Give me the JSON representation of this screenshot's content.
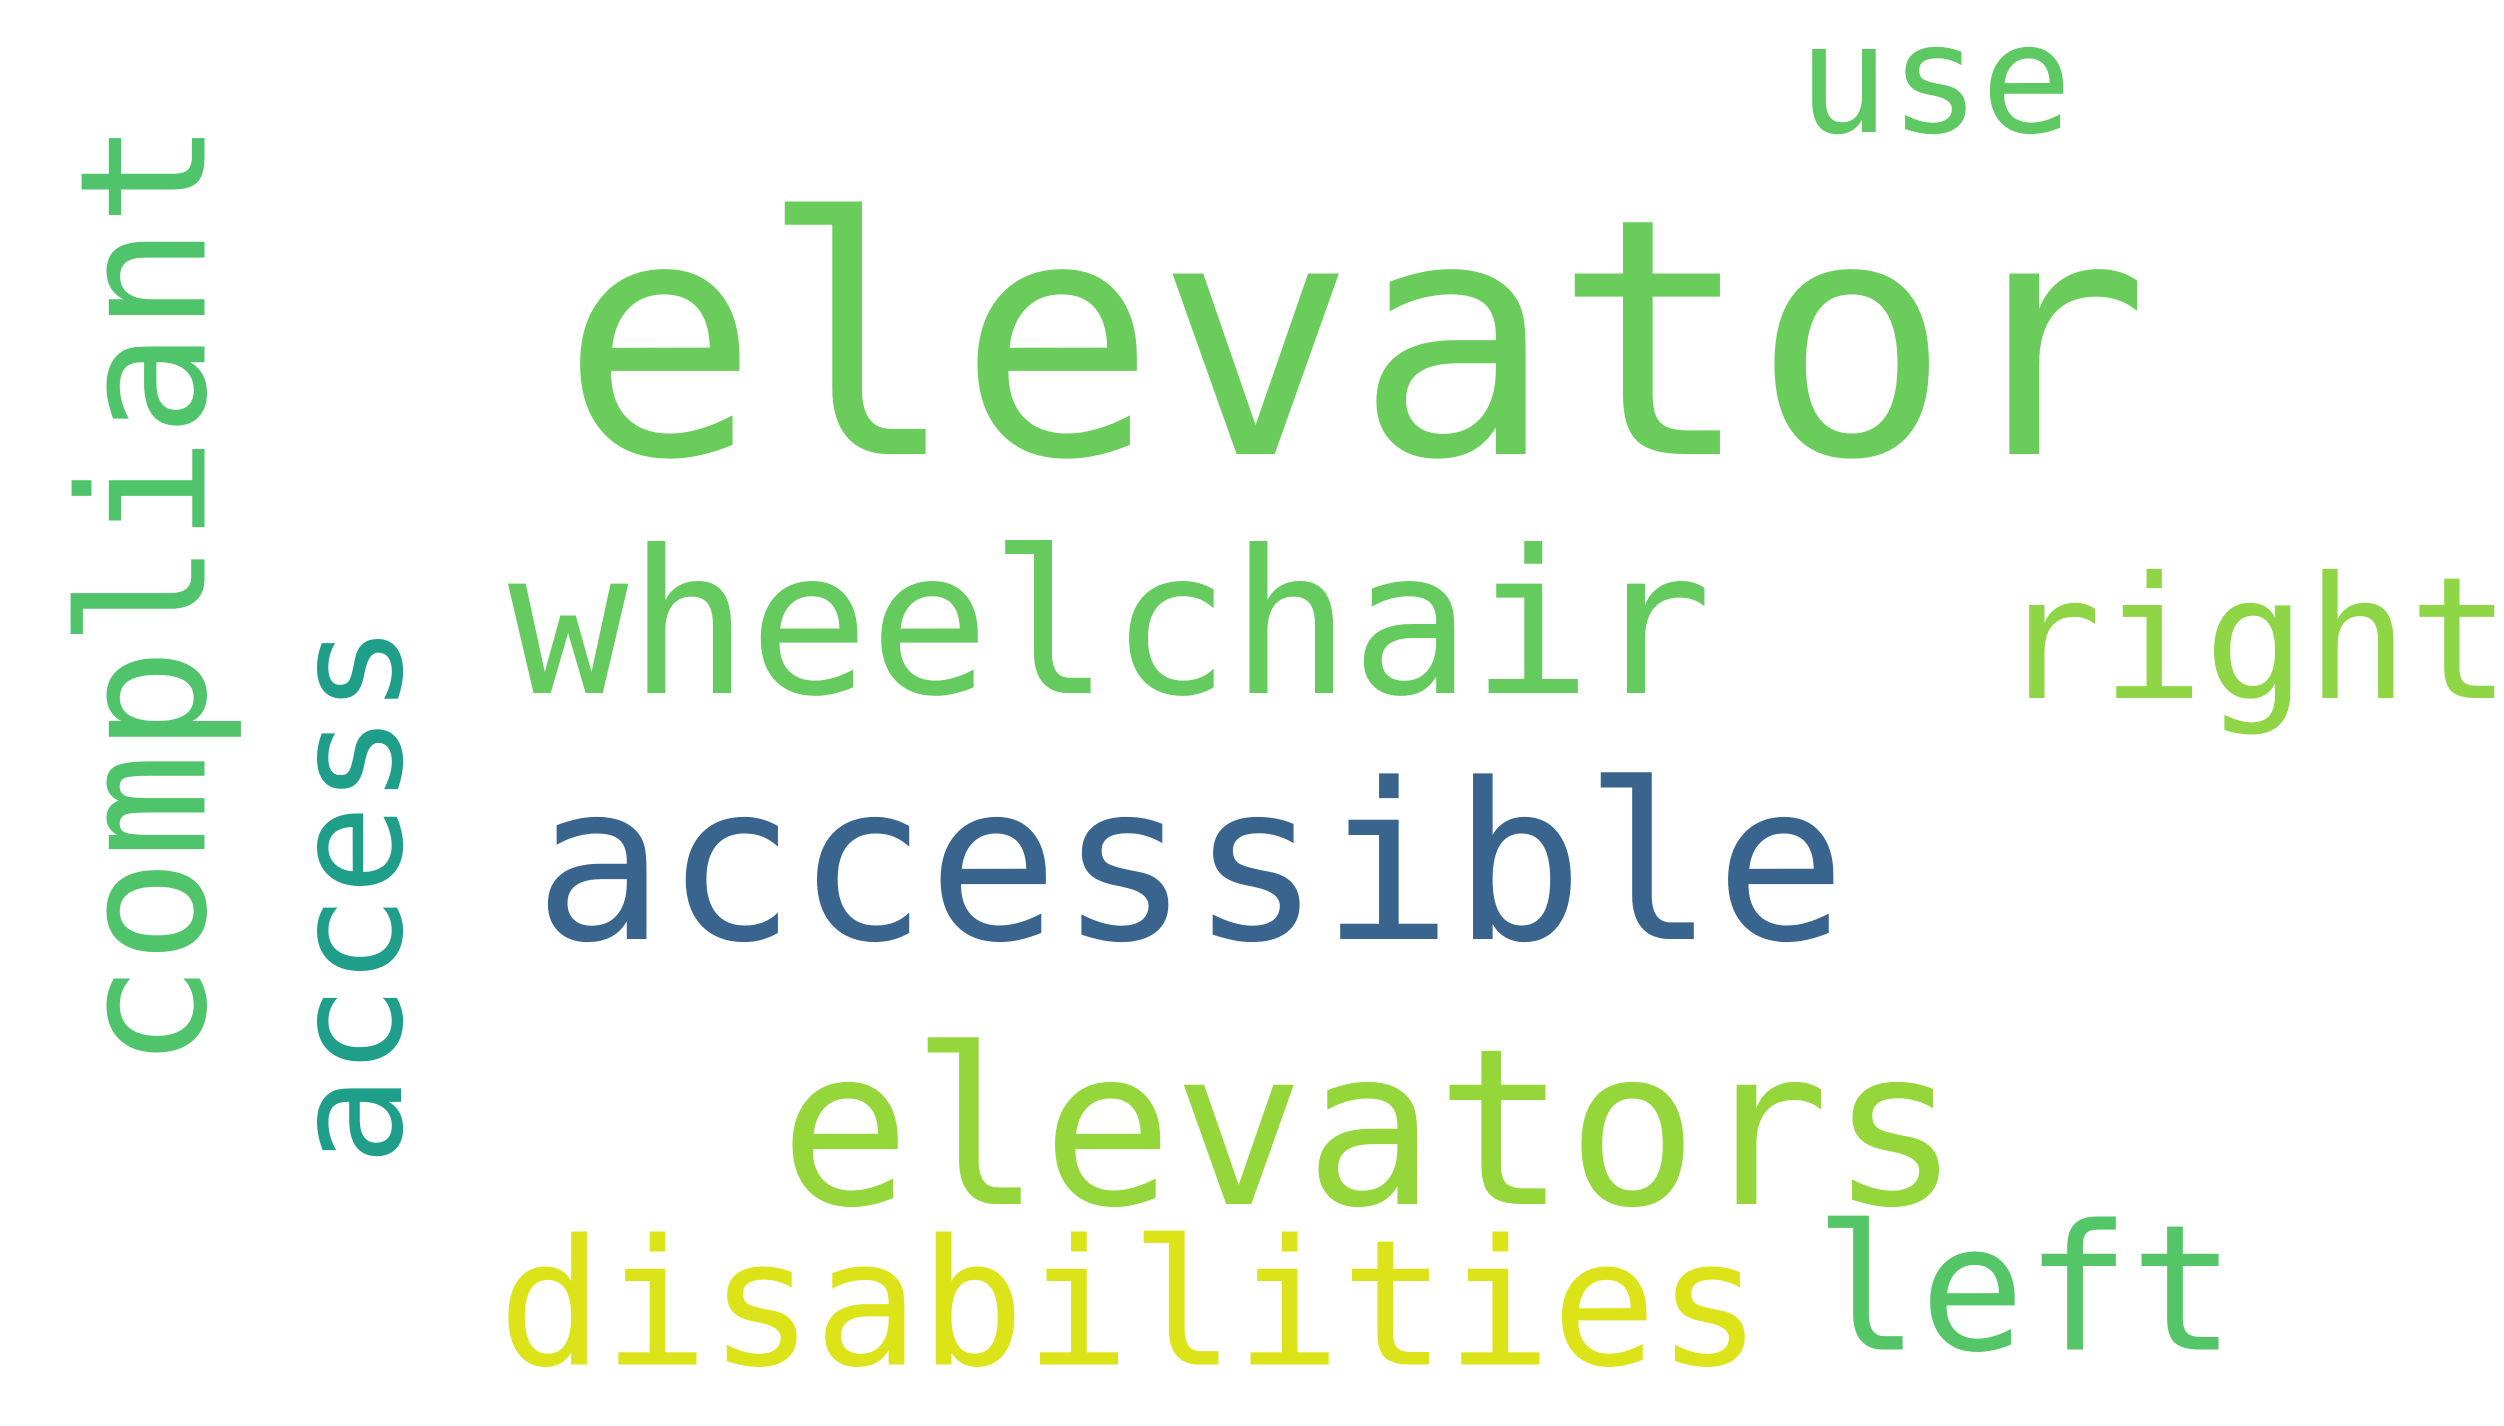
{
  "words": [
    {
      "key": "elevator",
      "text": "elevator",
      "color": "#6acd5b",
      "vertical": false
    },
    {
      "key": "wheelchair",
      "text": "wheelchair",
      "color": "#65cb5e",
      "vertical": false
    },
    {
      "key": "accessible",
      "text": "accessible",
      "color": "#38648e",
      "vertical": false
    },
    {
      "key": "elevators",
      "text": "elevators",
      "color": "#95d73b",
      "vertical": false
    },
    {
      "key": "compliant",
      "text": "compliant",
      "color": "#4fc46a",
      "vertical": true
    },
    {
      "key": "access",
      "text": "access",
      "color": "#1f9e89",
      "vertical": true
    },
    {
      "key": "use",
      "text": "use",
      "color": "#5ec962",
      "vertical": false
    },
    {
      "key": "right",
      "text": "right",
      "color": "#8ed645",
      "vertical": false
    },
    {
      "key": "disabilities",
      "text": "disabilities",
      "color": "#dce319",
      "vertical": false
    },
    {
      "key": "left",
      "text": "left",
      "color": "#55c667",
      "vertical": false
    }
  ]
}
